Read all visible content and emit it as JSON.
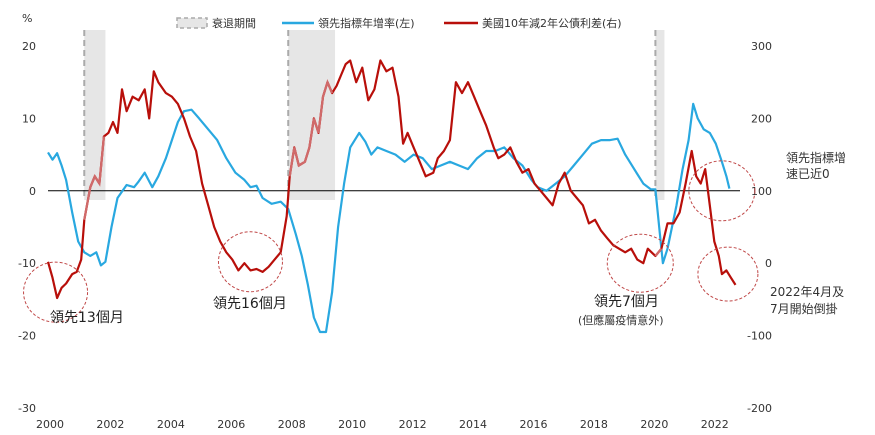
{
  "chart_data": {
    "type": "line",
    "y_left_unit": "%",
    "y_left_ticks": [
      20,
      10,
      0,
      -10,
      -20,
      -30
    ],
    "y_right_ticks": [
      300,
      200,
      100,
      0,
      -100,
      -200
    ],
    "x_ticks": [
      "2000",
      "2002",
      "2004",
      "2006",
      "2008",
      "2010",
      "2012",
      "2014",
      "2016",
      "2018",
      "2020",
      "2022"
    ],
    "xlim": [
      2000,
      2022.9
    ],
    "ylim_left": [
      -30,
      20
    ],
    "ylim_right": [
      -200,
      300
    ],
    "grid": "off",
    "legend_position": "top",
    "legend": {
      "recession": "衰退期間",
      "blue": "領先指標年增率(左)",
      "red": "美國10年減2年公債利差(右)"
    },
    "colors": {
      "blue": "#29a8e0",
      "red": "#b80f0a",
      "red_in_recession": "#d06a6a",
      "recession_fill": "#e6e6e6",
      "recession_dash": "#aaaaaa",
      "circle": "#c04848",
      "axis": "#000000"
    },
    "recessions": [
      [
        2001.2,
        2001.9
      ],
      [
        2007.95,
        2009.5
      ],
      [
        2020.1,
        2020.4
      ]
    ],
    "series": [
      {
        "name": "領先指標年增率(左)",
        "axis": "left",
        "color": "blue",
        "points": [
          [
            2000,
            5.3
          ],
          [
            2000.15,
            4.3
          ],
          [
            2000.3,
            5.2
          ],
          [
            2000.45,
            3.5
          ],
          [
            2000.6,
            1.5
          ],
          [
            2000.8,
            -3
          ],
          [
            2001,
            -7
          ],
          [
            2001.2,
            -8.5
          ],
          [
            2001.4,
            -9
          ],
          [
            2001.6,
            -8.5
          ],
          [
            2001.75,
            -10.3
          ],
          [
            2001.9,
            -9.8
          ],
          [
            2002.1,
            -5
          ],
          [
            2002.3,
            -1
          ],
          [
            2002.6,
            0.8
          ],
          [
            2002.85,
            0.5
          ],
          [
            2003.0,
            1.3
          ],
          [
            2003.2,
            2.5
          ],
          [
            2003.45,
            0.5
          ],
          [
            2003.65,
            2
          ],
          [
            2003.9,
            4.5
          ],
          [
            2004.1,
            7
          ],
          [
            2004.3,
            9.5
          ],
          [
            2004.5,
            11
          ],
          [
            2004.75,
            11.2
          ],
          [
            2005.0,
            10
          ],
          [
            2005.3,
            8.5
          ],
          [
            2005.6,
            7
          ],
          [
            2005.9,
            4.5
          ],
          [
            2006.2,
            2.5
          ],
          [
            2006.5,
            1.5
          ],
          [
            2006.7,
            0.5
          ],
          [
            2006.9,
            0.7
          ],
          [
            2007.1,
            -1
          ],
          [
            2007.4,
            -1.8
          ],
          [
            2007.7,
            -1.5
          ],
          [
            2007.95,
            -2.5
          ],
          [
            2008.2,
            -6
          ],
          [
            2008.4,
            -9
          ],
          [
            2008.6,
            -13
          ],
          [
            2008.8,
            -17.5
          ],
          [
            2009.0,
            -19.5
          ],
          [
            2009.2,
            -19.5
          ],
          [
            2009.4,
            -14
          ],
          [
            2009.6,
            -5
          ],
          [
            2009.8,
            1
          ],
          [
            2010.0,
            6
          ],
          [
            2010.3,
            8
          ],
          [
            2010.5,
            6.8
          ],
          [
            2010.7,
            5
          ],
          [
            2010.9,
            6
          ],
          [
            2011.2,
            5.5
          ],
          [
            2011.5,
            5
          ],
          [
            2011.8,
            4
          ],
          [
            2012.1,
            5
          ],
          [
            2012.4,
            4.5
          ],
          [
            2012.7,
            3
          ],
          [
            2013.0,
            3.5
          ],
          [
            2013.3,
            4
          ],
          [
            2013.6,
            3.5
          ],
          [
            2013.9,
            3
          ],
          [
            2014.2,
            4.5
          ],
          [
            2014.5,
            5.5
          ],
          [
            2014.8,
            5.5
          ],
          [
            2015.1,
            6
          ],
          [
            2015.4,
            4.5
          ],
          [
            2015.7,
            3.5
          ],
          [
            2016.0,
            1.5
          ],
          [
            2016.2,
            0.5
          ],
          [
            2016.5,
            0
          ],
          [
            2016.8,
            1
          ],
          [
            2017.1,
            2
          ],
          [
            2017.4,
            3.5
          ],
          [
            2017.7,
            5
          ],
          [
            2018.0,
            6.5
          ],
          [
            2018.3,
            7
          ],
          [
            2018.6,
            7
          ],
          [
            2018.85,
            7.2
          ],
          [
            2019.1,
            5
          ],
          [
            2019.4,
            3
          ],
          [
            2019.7,
            1
          ],
          [
            2019.95,
            0.2
          ],
          [
            2020.1,
            0.2
          ],
          [
            2020.25,
            -6
          ],
          [
            2020.35,
            -10
          ],
          [
            2020.5,
            -8
          ],
          [
            2020.65,
            -5
          ],
          [
            2020.8,
            -2
          ],
          [
            2021.0,
            3
          ],
          [
            2021.2,
            7
          ],
          [
            2021.35,
            12
          ],
          [
            2021.5,
            10
          ],
          [
            2021.7,
            8.5
          ],
          [
            2021.9,
            8
          ],
          [
            2022.1,
            6.5
          ],
          [
            2022.3,
            4
          ],
          [
            2022.45,
            2
          ],
          [
            2022.55,
            0.3
          ]
        ]
      },
      {
        "name": "美國10年減2年公債利差(右)",
        "axis": "right",
        "color": "red",
        "points": [
          [
            2000.0,
            2
          ],
          [
            2000.15,
            -20
          ],
          [
            2000.3,
            -48
          ],
          [
            2000.45,
            -34
          ],
          [
            2000.6,
            -28
          ],
          [
            2000.8,
            -15
          ],
          [
            2000.95,
            -12
          ],
          [
            2001.1,
            5
          ],
          [
            2001.2,
            60
          ],
          [
            2001.4,
            105
          ],
          [
            2001.55,
            120
          ],
          [
            2001.7,
            110
          ],
          [
            2001.85,
            175
          ],
          [
            2002.0,
            180
          ],
          [
            2002.15,
            195
          ],
          [
            2002.3,
            180
          ],
          [
            2002.45,
            240
          ],
          [
            2002.6,
            210
          ],
          [
            2002.8,
            230
          ],
          [
            2003.0,
            225
          ],
          [
            2003.2,
            240
          ],
          [
            2003.35,
            200
          ],
          [
            2003.5,
            265
          ],
          [
            2003.65,
            250
          ],
          [
            2003.9,
            235
          ],
          [
            2004.1,
            230
          ],
          [
            2004.3,
            220
          ],
          [
            2004.5,
            200
          ],
          [
            2004.7,
            175
          ],
          [
            2004.9,
            155
          ],
          [
            2005.1,
            110
          ],
          [
            2005.3,
            80
          ],
          [
            2005.5,
            50
          ],
          [
            2005.7,
            30
          ],
          [
            2005.9,
            15
          ],
          [
            2006.1,
            5
          ],
          [
            2006.3,
            -10
          ],
          [
            2006.5,
            0
          ],
          [
            2006.7,
            -10
          ],
          [
            2006.9,
            -8
          ],
          [
            2007.1,
            -12
          ],
          [
            2007.3,
            -5
          ],
          [
            2007.5,
            5
          ],
          [
            2007.7,
            15
          ],
          [
            2007.9,
            65
          ],
          [
            2008.0,
            120
          ],
          [
            2008.15,
            160
          ],
          [
            2008.3,
            135
          ],
          [
            2008.5,
            140
          ],
          [
            2008.65,
            160
          ],
          [
            2008.8,
            200
          ],
          [
            2008.95,
            180
          ],
          [
            2009.1,
            230
          ],
          [
            2009.25,
            250
          ],
          [
            2009.4,
            235
          ],
          [
            2009.55,
            245
          ],
          [
            2009.7,
            260
          ],
          [
            2009.85,
            275
          ],
          [
            2010.0,
            280
          ],
          [
            2010.2,
            250
          ],
          [
            2010.4,
            270
          ],
          [
            2010.6,
            225
          ],
          [
            2010.8,
            240
          ],
          [
            2011.0,
            280
          ],
          [
            2011.2,
            265
          ],
          [
            2011.4,
            270
          ],
          [
            2011.6,
            230
          ],
          [
            2011.75,
            165
          ],
          [
            2011.9,
            180
          ],
          [
            2012.1,
            160
          ],
          [
            2012.3,
            140
          ],
          [
            2012.5,
            120
          ],
          [
            2012.75,
            125
          ],
          [
            2012.9,
            145
          ],
          [
            2013.1,
            155
          ],
          [
            2013.3,
            170
          ],
          [
            2013.5,
            250
          ],
          [
            2013.7,
            235
          ],
          [
            2013.9,
            250
          ],
          [
            2014.1,
            230
          ],
          [
            2014.3,
            210
          ],
          [
            2014.5,
            190
          ],
          [
            2014.75,
            160
          ],
          [
            2014.9,
            145
          ],
          [
            2015.1,
            150
          ],
          [
            2015.3,
            160
          ],
          [
            2015.5,
            140
          ],
          [
            2015.7,
            125
          ],
          [
            2015.9,
            130
          ],
          [
            2016.1,
            110
          ],
          [
            2016.3,
            100
          ],
          [
            2016.5,
            90
          ],
          [
            2016.7,
            80
          ],
          [
            2016.9,
            110
          ],
          [
            2017.1,
            125
          ],
          [
            2017.3,
            100
          ],
          [
            2017.5,
            90
          ],
          [
            2017.7,
            80
          ],
          [
            2017.9,
            55
          ],
          [
            2018.1,
            60
          ],
          [
            2018.3,
            45
          ],
          [
            2018.5,
            35
          ],
          [
            2018.7,
            25
          ],
          [
            2018.9,
            20
          ],
          [
            2019.1,
            15
          ],
          [
            2019.3,
            20
          ],
          [
            2019.5,
            5
          ],
          [
            2019.7,
            0
          ],
          [
            2019.85,
            20
          ],
          [
            2020.1,
            10
          ],
          [
            2020.3,
            20
          ],
          [
            2020.5,
            55
          ],
          [
            2020.7,
            55
          ],
          [
            2020.9,
            70
          ],
          [
            2021.1,
            110
          ],
          [
            2021.3,
            155
          ],
          [
            2021.45,
            120
          ],
          [
            2021.6,
            110
          ],
          [
            2021.75,
            130
          ],
          [
            2021.9,
            80
          ],
          [
            2022.05,
            30
          ],
          [
            2022.2,
            10
          ],
          [
            2022.3,
            -15
          ],
          [
            2022.45,
            -10
          ],
          [
            2022.6,
            -20
          ],
          [
            2022.75,
            -30
          ]
        ]
      }
    ],
    "annotations": [
      {
        "text": "領先13個月",
        "circle": [
          2000.25,
          -40
        ]
      },
      {
        "text": "領先16個月",
        "circle": [
          2006.7,
          2
        ]
      },
      {
        "text": "領先7個月",
        "sub": "(但應屬疫情意外)",
        "circle": [
          2019.6,
          0
        ]
      },
      {
        "lines": [
          "領先指標增",
          "速已近0"
        ],
        "circle": [
          2022.3,
          100
        ]
      },
      {
        "lines": [
          "2022年4月及",
          "7月開始倒掛"
        ],
        "circle": [
          2022.5,
          -15
        ]
      }
    ]
  }
}
